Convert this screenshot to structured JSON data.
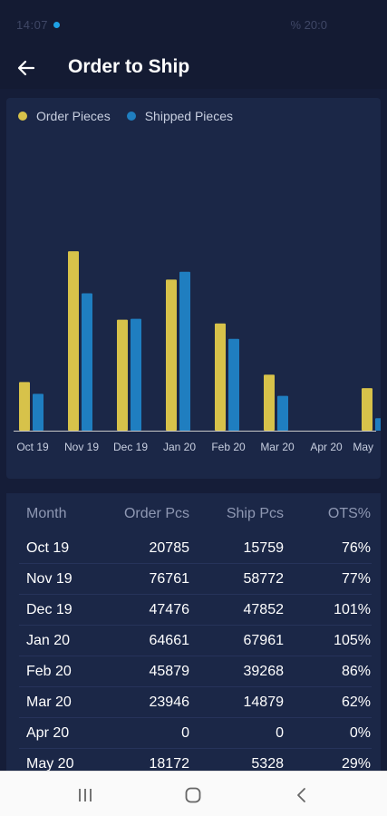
{
  "status": {
    "time": "14:07",
    "battery": "% 20:0"
  },
  "header": {
    "title": "Order to Ship",
    "back_icon": "arrow-left-icon"
  },
  "colors": {
    "order": "#d7c24a",
    "ship": "#1f7ec0",
    "background": "#151d38",
    "card": "#1b2747"
  },
  "chart_data": {
    "type": "bar",
    "categories": [
      "Oct 19",
      "Nov 19",
      "Dec 19",
      "Jan 20",
      "Feb 20",
      "Mar 20",
      "Apr 20",
      "May"
    ],
    "series": [
      {
        "name": "Order Pieces",
        "values": [
          20785,
          76761,
          47476,
          64661,
          45879,
          23946,
          0,
          18172
        ]
      },
      {
        "name": "Shipped Pieces",
        "values": [
          15759,
          58772,
          47852,
          67961,
          39268,
          14879,
          0,
          5328
        ]
      }
    ],
    "ylim": [
      0,
      90000
    ],
    "legend": "top-left",
    "grid": false
  },
  "table": {
    "headers": {
      "month": "Month",
      "order": "Order Pcs",
      "ship": "Ship Pcs",
      "ots": "OTS%"
    },
    "rows": [
      {
        "month": "Oct 19",
        "order": "20785",
        "ship": "15759",
        "ots": "76%"
      },
      {
        "month": "Nov 19",
        "order": "76761",
        "ship": "58772",
        "ots": "77%"
      },
      {
        "month": "Dec 19",
        "order": "47476",
        "ship": "47852",
        "ots": "101%"
      },
      {
        "month": "Jan 20",
        "order": "64661",
        "ship": "67961",
        "ots": "105%"
      },
      {
        "month": "Feb 20",
        "order": "45879",
        "ship": "39268",
        "ots": "86%"
      },
      {
        "month": "Mar 20",
        "order": "23946",
        "ship": "14879",
        "ots": "62%"
      },
      {
        "month": "Apr 20",
        "order": "0",
        "ship": "0",
        "ots": "0%"
      },
      {
        "month": "May 20",
        "order": "18172",
        "ship": "5328",
        "ots": "29%"
      }
    ]
  },
  "nav": {
    "recents_icon": "recents-icon",
    "home_icon": "home-icon",
    "back_icon": "back-chevron-icon"
  }
}
